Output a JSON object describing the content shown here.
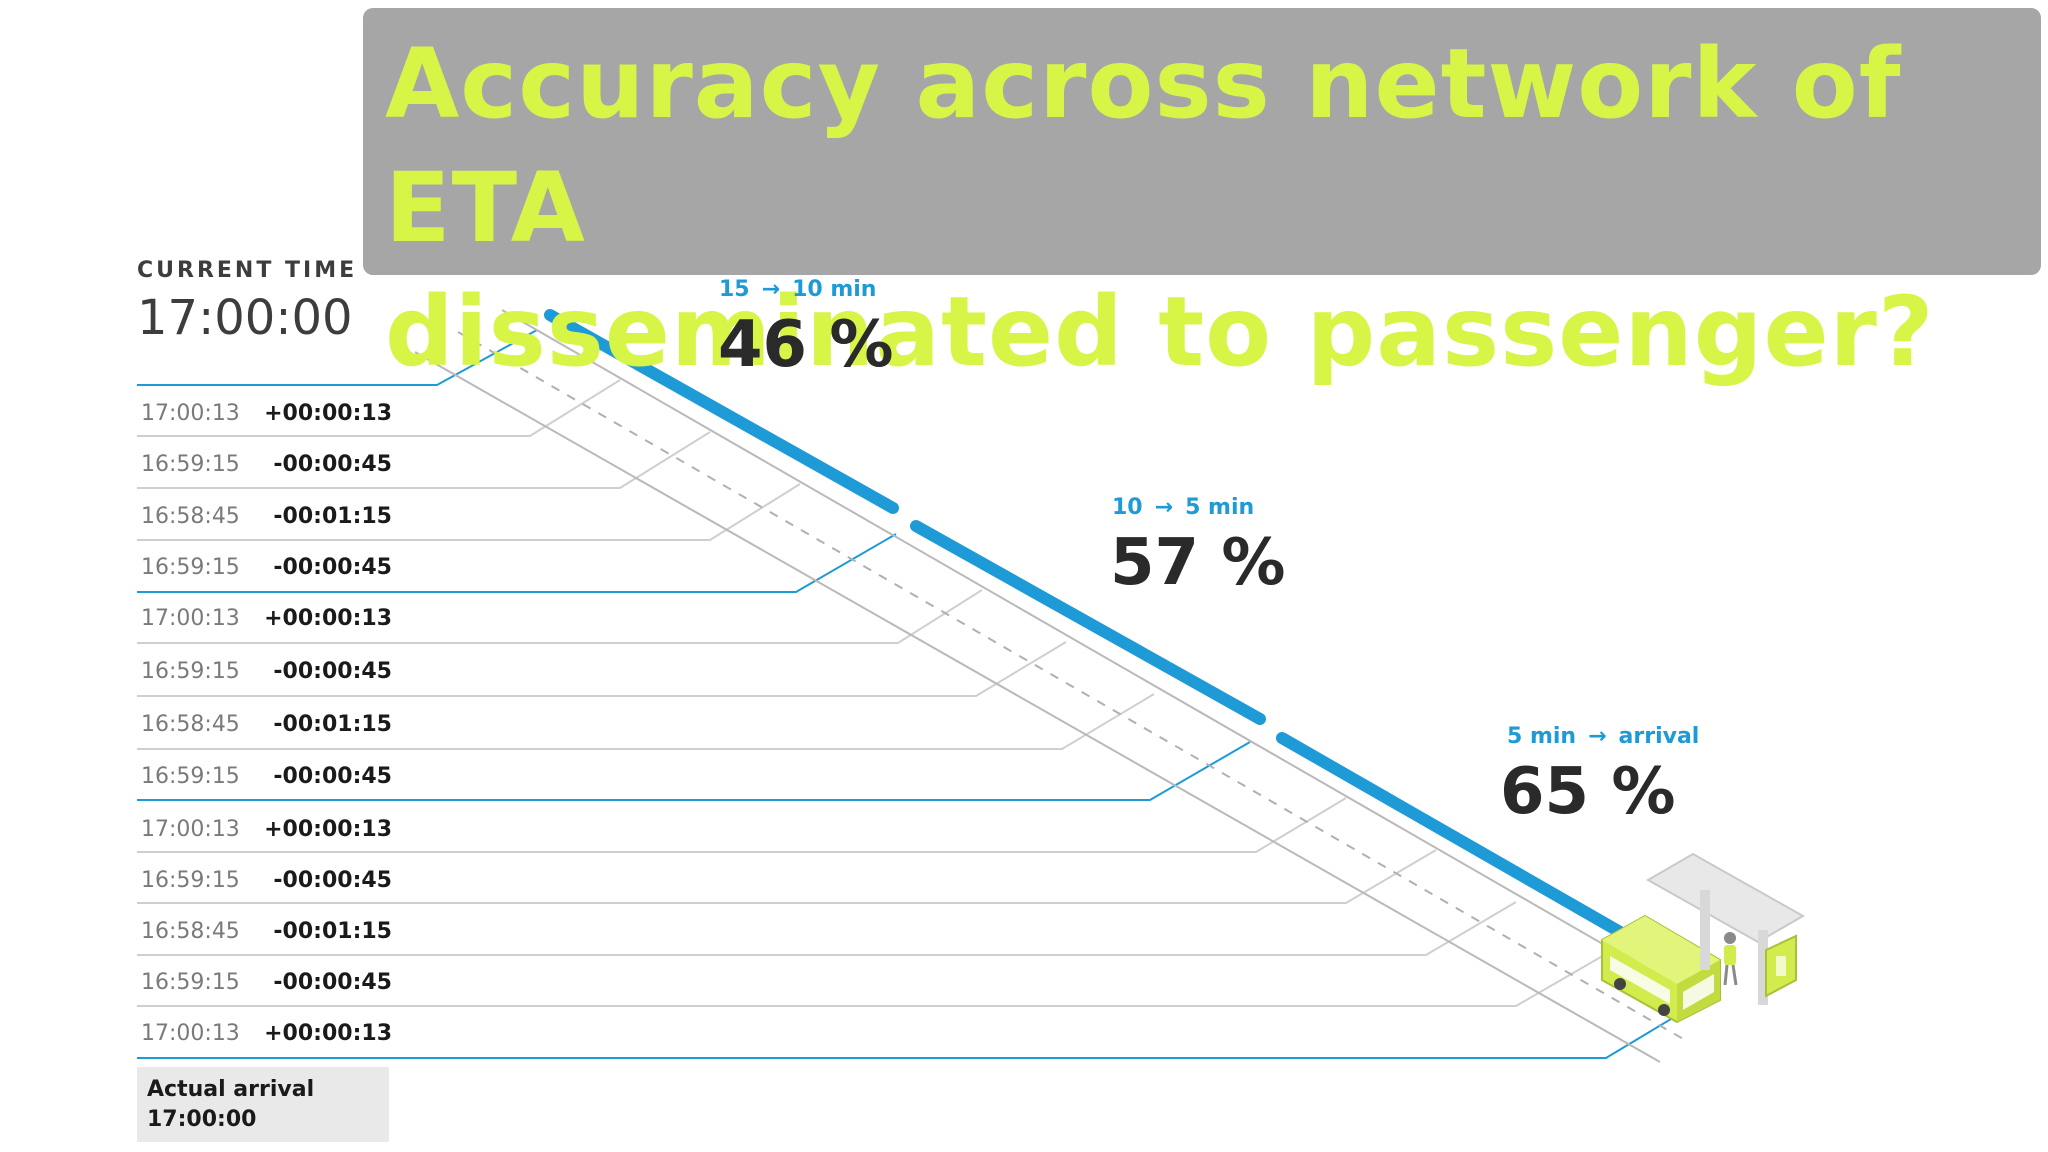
{
  "title": {
    "line1": "Accuracy across network of ETA",
    "line2": "disseminated to passenger?"
  },
  "current_time": {
    "label": "CURRENT TIME",
    "value": "17:00:00"
  },
  "segments": [
    {
      "from": "15",
      "arrow": "→",
      "to": "10 min",
      "percent": "46 %"
    },
    {
      "from": "10",
      "arrow": "→",
      "to": "5 min",
      "percent": "57 %"
    },
    {
      "from": "5 min",
      "arrow": "→",
      "to": "arrival",
      "percent": "65 %"
    }
  ],
  "rows": [
    {
      "time": "17:00:13",
      "diff": "+00:00:13"
    },
    {
      "time": "16:59:15",
      "diff": "-00:00:45"
    },
    {
      "time": "16:58:45",
      "diff": "-00:01:15"
    },
    {
      "time": "16:59:15",
      "diff": "-00:00:45"
    },
    {
      "time": "17:00:13",
      "diff": "+00:00:13"
    },
    {
      "time": "16:59:15",
      "diff": "-00:00:45"
    },
    {
      "time": "16:58:45",
      "diff": "-00:01:15"
    },
    {
      "time": "16:59:15",
      "diff": "-00:00:45"
    },
    {
      "time": "17:00:13",
      "diff": "+00:00:13"
    },
    {
      "time": "16:59:15",
      "diff": "-00:00:45"
    },
    {
      "time": "16:58:45",
      "diff": "-00:01:15"
    },
    {
      "time": "16:59:15",
      "diff": "-00:00:45"
    },
    {
      "time": "17:00:13",
      "diff": "+00:00:13"
    }
  ],
  "actual_arrival": {
    "label": "Actual arrival",
    "time": "17:00:00"
  },
  "colors": {
    "accent_blue": "#1e9ad6",
    "bus_green": "#d2ec4d",
    "title_green": "#d7f547",
    "title_bg": "#a6a6a6"
  },
  "icons": [
    "bus-icon",
    "bus-stop-shelter-icon",
    "passenger-icon"
  ]
}
